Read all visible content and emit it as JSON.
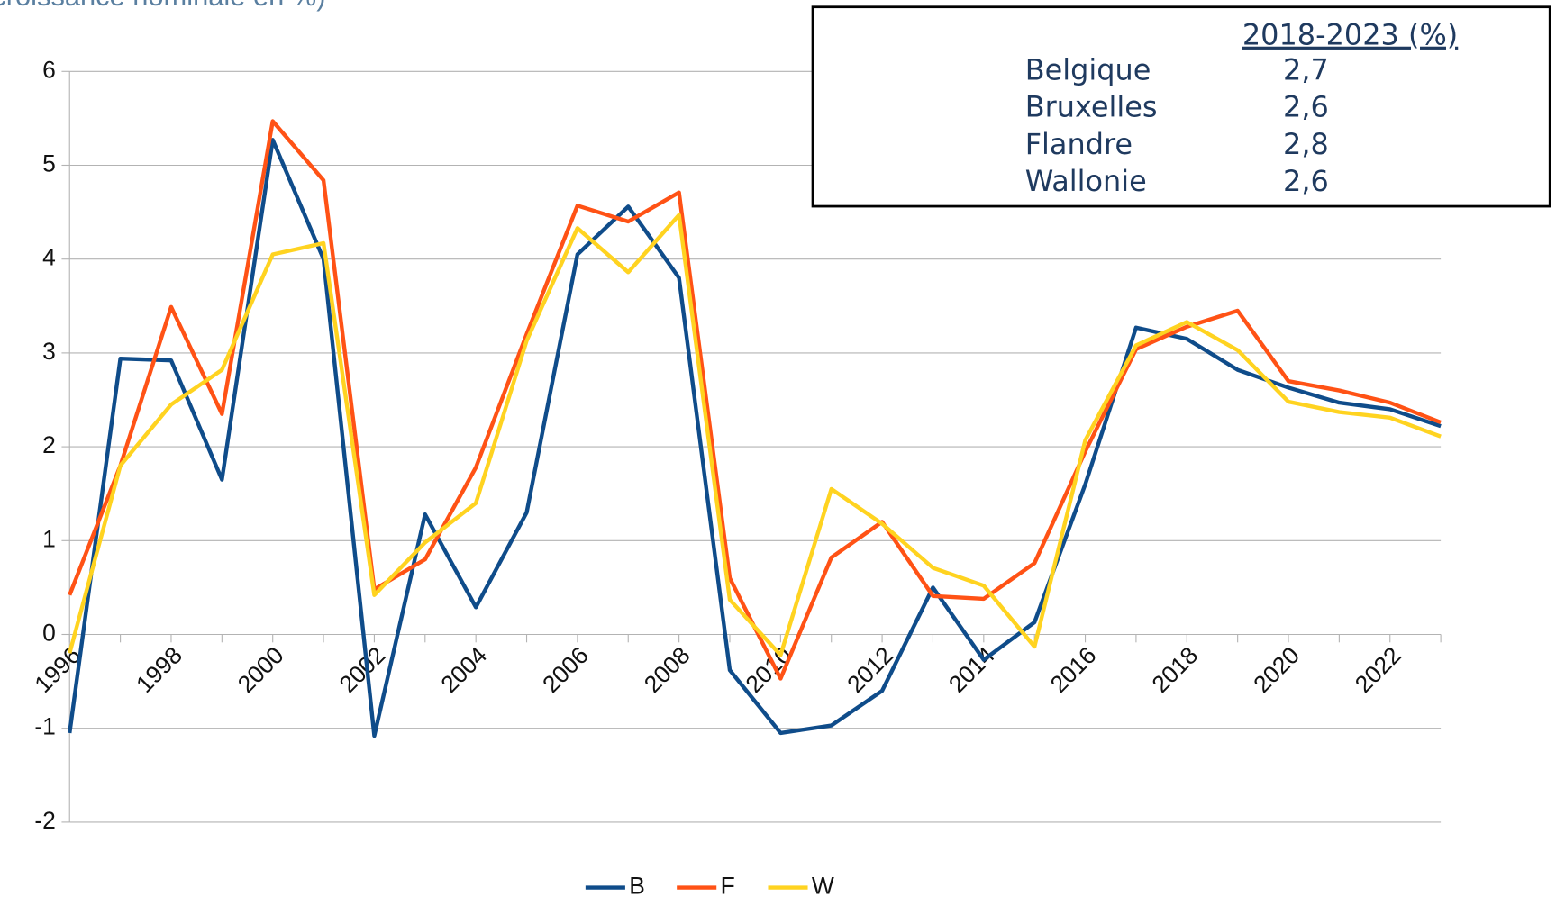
{
  "chart_data": {
    "type": "line",
    "title": "croissance nominale en %)",
    "categories": [
      "1996",
      null,
      "1998",
      null,
      "2000",
      null,
      "2002",
      null,
      "2004",
      null,
      "2006",
      null,
      "2008",
      null,
      "2010",
      null,
      "2012",
      null,
      "2014",
      null,
      "2016",
      null,
      "2018",
      null,
      "2020",
      null,
      "2022",
      null
    ],
    "series": [
      {
        "name": "B",
        "color": "#0f4c8a",
        "values": [
          -1.05,
          2.94,
          2.92,
          1.65,
          5.27,
          4.0,
          -1.08,
          1.28,
          0.29,
          1.3,
          4.05,
          4.56,
          3.8,
          -0.38,
          -1.05,
          -0.97,
          -0.6,
          0.5,
          -0.27,
          0.13,
          1.6,
          3.27,
          3.15,
          2.82,
          2.63,
          2.47,
          2.4,
          2.22
        ]
      },
      {
        "name": "F",
        "color": "#ff5215",
        "values": [
          0.42,
          1.8,
          3.49,
          2.35,
          5.47,
          4.84,
          0.48,
          0.8,
          1.78,
          3.2,
          4.57,
          4.4,
          4.71,
          0.6,
          -0.47,
          0.82,
          1.2,
          0.41,
          0.38,
          0.76,
          1.95,
          3.04,
          3.28,
          3.45,
          2.7,
          2.6,
          2.47,
          2.26
        ]
      },
      {
        "name": "W",
        "color": "#ffd320",
        "values": [
          -0.2,
          1.8,
          2.45,
          2.82,
          4.05,
          4.17,
          0.42,
          0.98,
          1.4,
          3.13,
          4.33,
          3.86,
          4.47,
          0.37,
          -0.22,
          1.55,
          1.18,
          0.71,
          0.52,
          -0.13,
          2.07,
          3.08,
          3.33,
          3.03,
          2.48,
          2.37,
          2.31,
          2.11
        ]
      }
    ],
    "ylim": [
      -2,
      6
    ],
    "yticks": [
      -2,
      -1,
      0,
      1,
      2,
      3,
      4,
      5,
      6
    ],
    "grid": true,
    "legend": "bottom",
    "table": {
      "header": "2018-2023 (%)",
      "rows": [
        [
          "Belgique",
          "2,7"
        ],
        [
          "Bruxelles",
          "2,6"
        ],
        [
          "Flandre",
          "2,8"
        ],
        [
          "Wallonie",
          "2,6"
        ]
      ]
    }
  }
}
